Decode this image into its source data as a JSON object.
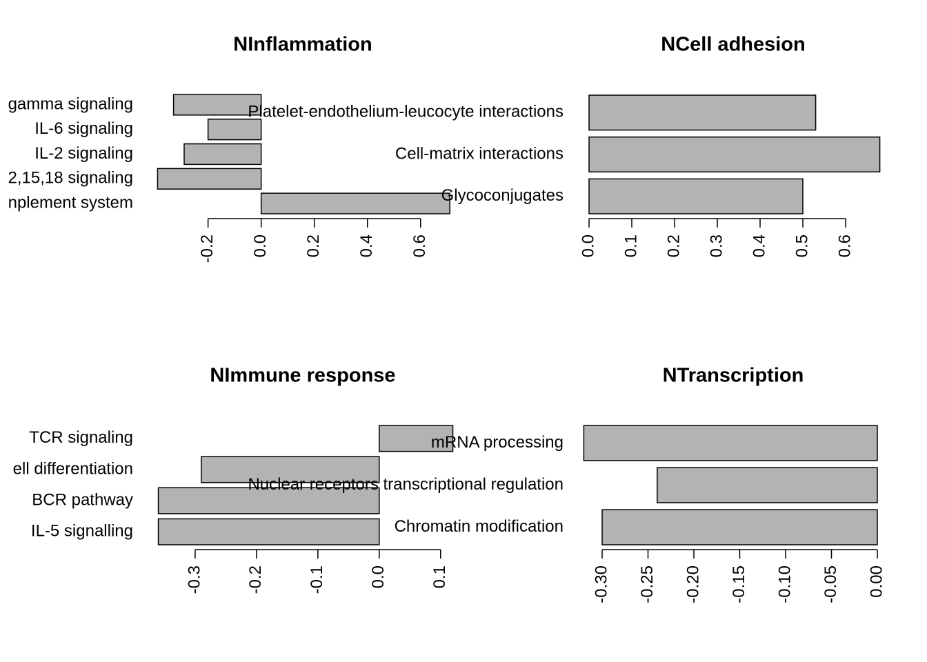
{
  "chart_data": [
    {
      "type": "barh",
      "title": "NInflammation",
      "categories": [
        "gamma signaling",
        "IL-6 signaling",
        "IL-2 signaling",
        "2,15,18 signaling",
        "nplement system"
      ],
      "values": [
        -0.33,
        -0.2,
        -0.29,
        -0.39,
        0.71
      ],
      "color": "#b3b3b3",
      "xlim": [
        -0.4,
        0.72
      ],
      "xticks": [
        -0.2,
        {
          "value": 0,
          "label": "0.0"
        },
        0.2,
        0.4,
        0.6
      ]
    },
    {
      "type": "barh",
      "title": "NCell adhesion",
      "categories": [
        "Platelet-endothelium-leucocyte interactions",
        "Cell-matrix interactions",
        "Glycoconjugates"
      ],
      "values": [
        0.53,
        0.68,
        0.5
      ],
      "color": "#b3b3b3",
      "xlim": [
        0,
        0.68
      ],
      "xticks": [
        {
          "value": 0,
          "label": "0.0"
        },
        0.1,
        0.2,
        0.3,
        0.4,
        0.5,
        0.6
      ]
    },
    {
      "type": "barh",
      "title": "NImmune response",
      "categories": [
        "TCR signaling",
        "ell differentiation",
        "BCR pathway",
        "IL-5 signalling"
      ],
      "values": [
        0.12,
        -0.29,
        -0.36,
        -0.36
      ],
      "color": "#b3b3b3",
      "xlim": [
        -0.364,
        0.116
      ],
      "xticks": [
        -0.3,
        -0.2,
        -0.1,
        {
          "value": 0,
          "label": "0.0"
        },
        0.1
      ]
    },
    {
      "type": "barh",
      "title": "NTranscription",
      "categories": [
        "mRNA processing",
        "Nuclear receptors transcriptional regulation",
        "Chromatin modification"
      ],
      "values": [
        -0.32,
        -0.24,
        -0.3
      ],
      "color": "#b3b3b3",
      "xlim": [
        -0.32,
        0
      ],
      "xticks": [
        {
          "value": -0.3,
          "label": "-0.30"
        },
        -0.25,
        {
          "value": -0.2,
          "label": "-0.20"
        },
        -0.15,
        {
          "value": -0.1,
          "label": "-0.10"
        },
        -0.05,
        {
          "value": 0,
          "label": "0.00"
        }
      ]
    }
  ]
}
